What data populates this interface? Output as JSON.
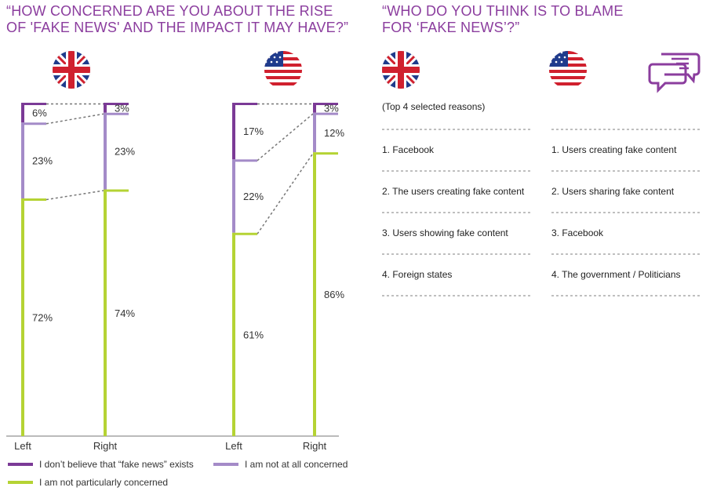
{
  "left_panel": {
    "title_line1": "“HOW CONCERNED ARE YOU ABOUT THE RISE",
    "title_line2": "OF 'FAKE NEWS' AND THE IMPACT IT MAY HAVE?”"
  },
  "right_panel": {
    "title_line1": "“WHO DO YOU THINK IS TO BLAME",
    "title_line2": "FOR ‘FAKE NEWS’?”",
    "subtitle": "(Top 4 selected reasons)",
    "uk_reasons": [
      "1. Facebook",
      "2. The users creating fake content",
      "3. Users showing fake content",
      "4. Foreign states"
    ],
    "us_reasons": [
      "1. Users creating fake content",
      "2. Users sharing fake content",
      "3. Facebook",
      "4. The government / Politicians"
    ]
  },
  "icons": {
    "uk_flag": "uk-flag-icon",
    "us_flag": "us-flag-icon",
    "chat": "chat-bubbles-icon"
  },
  "colors": {
    "dont_believe": "#7b3a96",
    "not_at_all": "#a48bc8",
    "not_particularly": "#b5d334",
    "title": "#8b3d9e"
  },
  "chart_data": {
    "type": "bar",
    "stacked": true,
    "categories": [
      "Left",
      "Right",
      "Left",
      "Right"
    ],
    "groups": [
      "UK",
      "UK",
      "US",
      "US"
    ],
    "series": [
      {
        "name": "I don’t believe that “fake news” exists",
        "values": [
          6,
          3,
          17,
          3
        ]
      },
      {
        "name": "I am not at all concerned",
        "values": [
          23,
          23,
          22,
          12
        ]
      },
      {
        "name": "I am not particularly concerned",
        "values": [
          72,
          74,
          61,
          86
        ]
      }
    ],
    "labels": [
      [
        "6%",
        "3%",
        "17%",
        "3%"
      ],
      [
        "23%",
        "23%",
        "22%",
        "12%"
      ],
      [
        "72%",
        "74%",
        "61%",
        "86%"
      ]
    ],
    "ylim": [
      0,
      100
    ]
  }
}
